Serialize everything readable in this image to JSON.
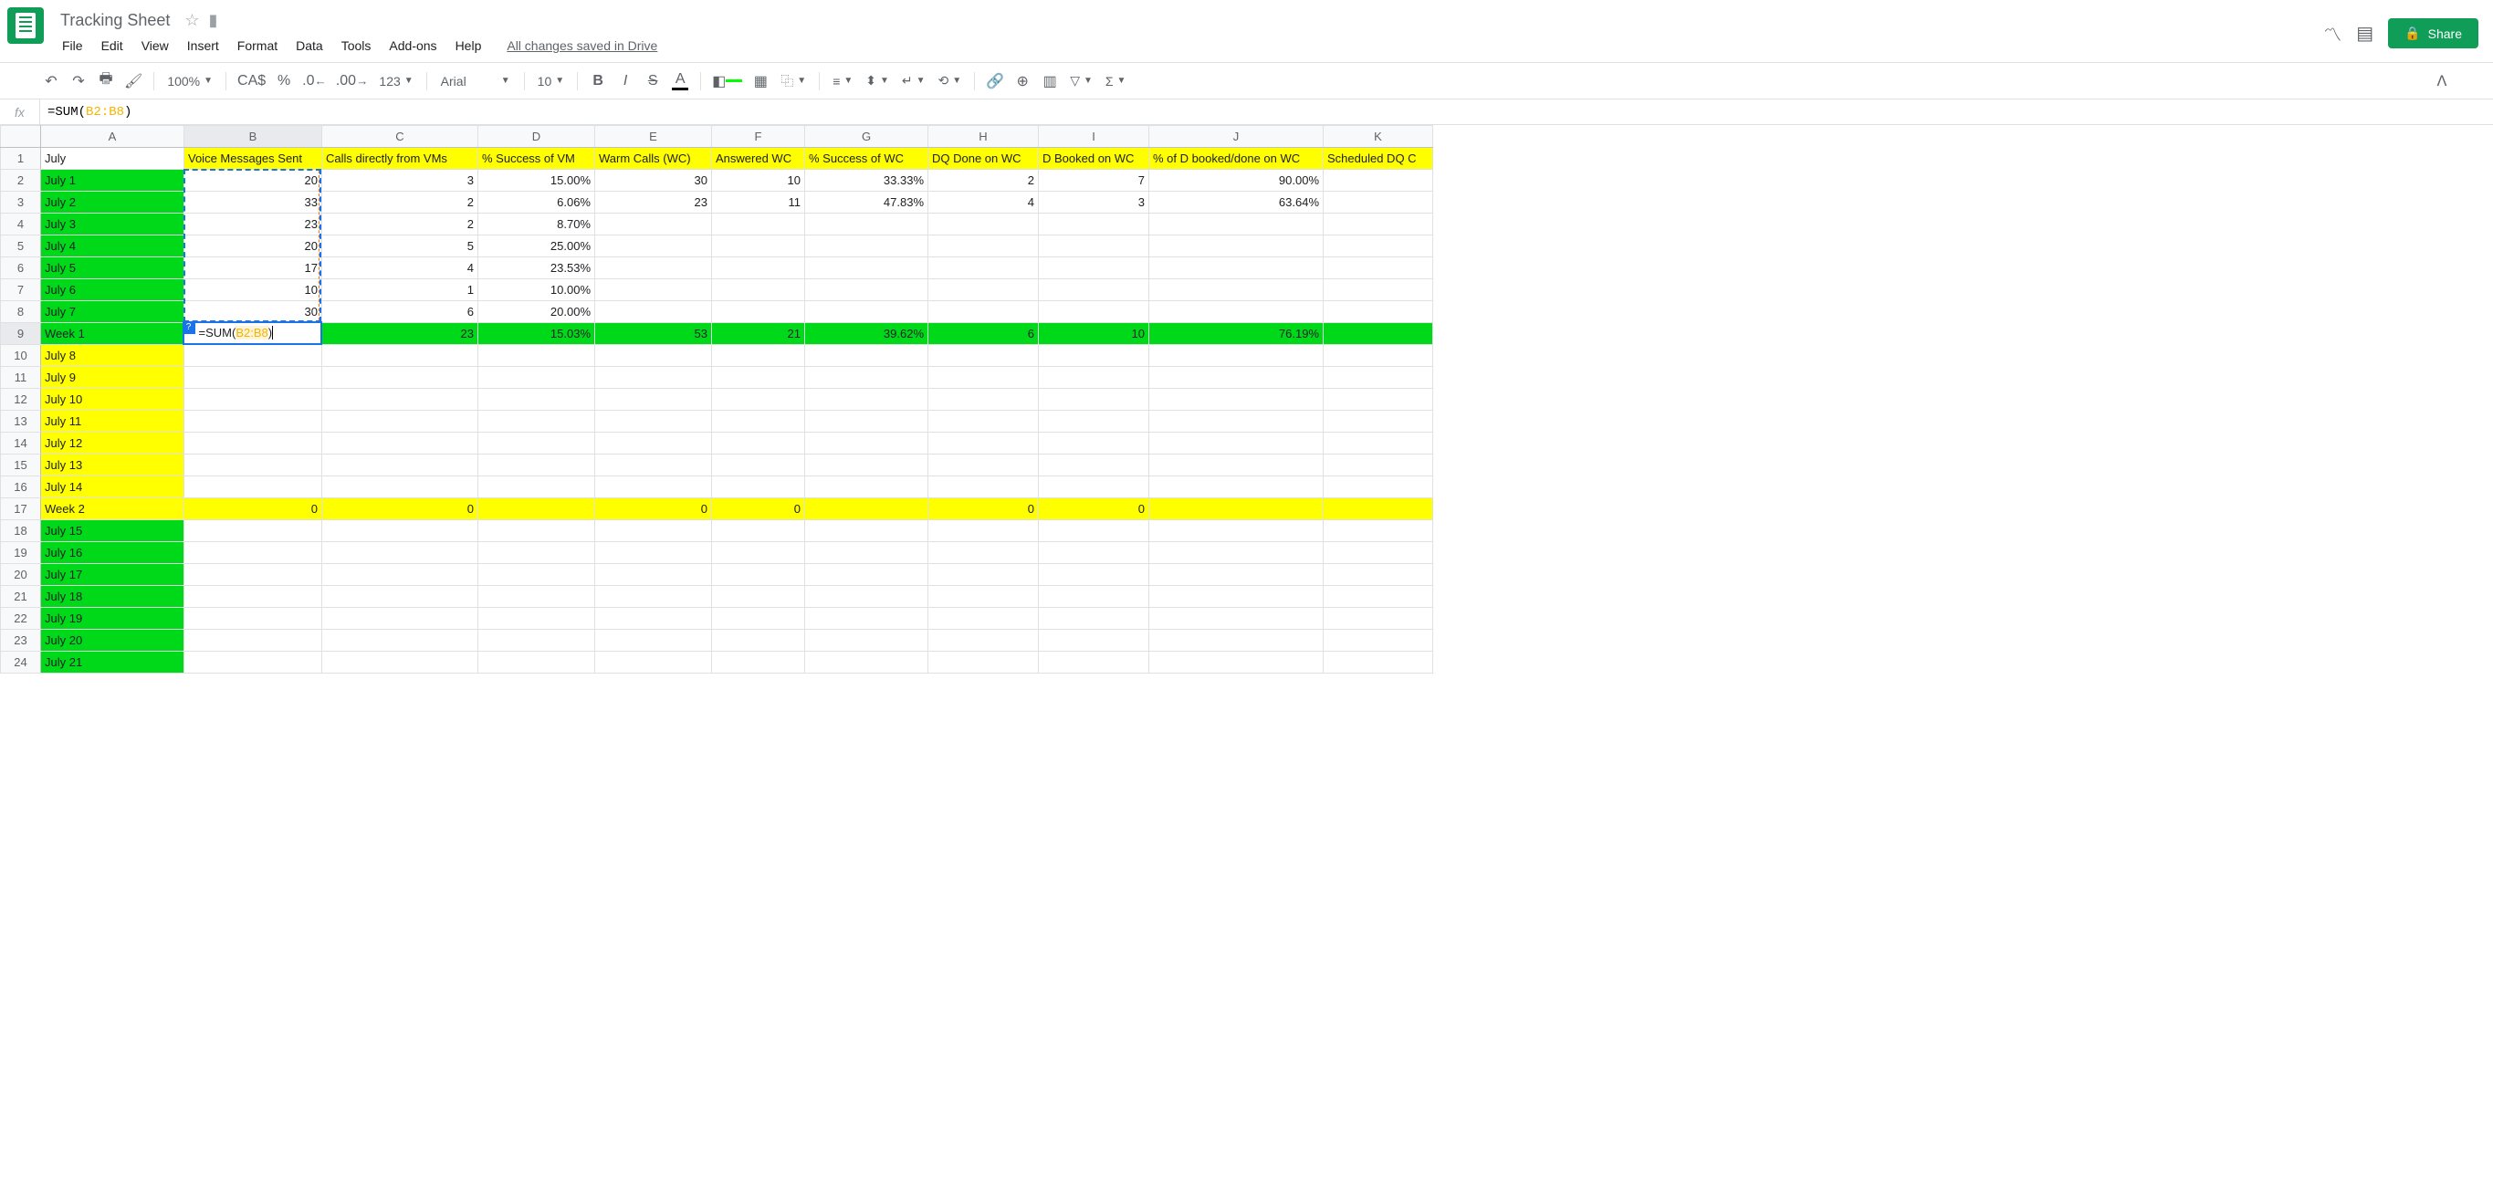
{
  "doc": {
    "title": "Tracking Sheet",
    "save_status": "All changes saved in Drive"
  },
  "share_btn": "Share",
  "menu": {
    "file": "File",
    "edit": "Edit",
    "view": "View",
    "insert": "Insert",
    "format": "Format",
    "data": "Data",
    "tools": "Tools",
    "addons": "Add-ons",
    "help": "Help"
  },
  "toolbar": {
    "zoom": "100%",
    "currency": "CA$",
    "percent": "%",
    "dec_less": ".0",
    "dec_more": ".00",
    "num_fmt": "123",
    "font": "Arial",
    "font_size": "10"
  },
  "formula_bar": {
    "fx": "fx",
    "prefix": "=SUM(",
    "range": "B2:B8",
    "suffix": ")"
  },
  "columns": [
    "A",
    "B",
    "C",
    "D",
    "E",
    "F",
    "G",
    "H",
    "I",
    "J",
    "K"
  ],
  "col_widths": {
    "A": 157,
    "B": 151,
    "C": 171,
    "D": 128,
    "E": 128,
    "F": 102,
    "G": 135,
    "H": 121,
    "I": 121,
    "J": 191,
    "K": 120
  },
  "row_count": 24,
  "selected_col": "B",
  "selected_row": 9,
  "headers_row1": {
    "A": "July",
    "B": "Voice Messages Sent",
    "C": "Calls directly from VMs",
    "D": "% Success of VM",
    "E": "Warm Calls (WC)",
    "F": "Answered WC",
    "G": "% Success of WC",
    "H": "DQ Done on WC",
    "I": "D Booked on WC",
    "J": "% of D booked/done on WC",
    "K": "Scheduled DQ C"
  },
  "rows": [
    {
      "r": 1,
      "bg": {
        "A": "",
        "B": "yellow",
        "C": "yellow",
        "D": "yellow",
        "E": "yellow",
        "F": "yellow",
        "G": "yellow",
        "H": "yellow",
        "I": "yellow",
        "J": "yellow",
        "K": "yellow"
      }
    },
    {
      "r": 2,
      "bg": {
        "A": "green"
      },
      "A": "July 1",
      "B": "20",
      "C": "3",
      "D": "15.00%",
      "E": "30",
      "F": "10",
      "G": "33.33%",
      "H": "2",
      "I": "7",
      "J": "90.00%"
    },
    {
      "r": 3,
      "bg": {
        "A": "green"
      },
      "A": "July 2",
      "B": "33",
      "C": "2",
      "D": "6.06%",
      "E": "23",
      "F": "11",
      "G": "47.83%",
      "H": "4",
      "I": "3",
      "J": "63.64%"
    },
    {
      "r": 4,
      "bg": {
        "A": "green"
      },
      "A": "July 3",
      "B": "23",
      "C": "2",
      "D": "8.70%"
    },
    {
      "r": 5,
      "bg": {
        "A": "green"
      },
      "A": "July 4",
      "B": "20",
      "C": "5",
      "D": "25.00%"
    },
    {
      "r": 6,
      "bg": {
        "A": "green"
      },
      "A": "July 5",
      "B": "17",
      "C": "4",
      "D": "23.53%"
    },
    {
      "r": 7,
      "bg": {
        "A": "green"
      },
      "A": "July 6",
      "B": "10",
      "C": "1",
      "D": "10.00%"
    },
    {
      "r": 8,
      "bg": {
        "A": "green"
      },
      "A": "July 7",
      "B": "30",
      "C": "6",
      "D": "20.00%"
    },
    {
      "r": 9,
      "bg": {
        "A": "green",
        "B": "",
        "C": "green",
        "D": "green",
        "E": "green",
        "F": "green",
        "G": "green",
        "H": "green",
        "I": "green",
        "J": "green",
        "K": "green"
      },
      "A": "Week 1",
      "C": "23",
      "D": "15.03%",
      "E": "53",
      "F": "21",
      "G": "39.62%",
      "H": "6",
      "I": "10",
      "J": "76.19%"
    },
    {
      "r": 10,
      "bg": {
        "A": "yellow"
      },
      "A": "July 8"
    },
    {
      "r": 11,
      "bg": {
        "A": "yellow"
      },
      "A": "July 9"
    },
    {
      "r": 12,
      "bg": {
        "A": "yellow"
      },
      "A": "July 10"
    },
    {
      "r": 13,
      "bg": {
        "A": "yellow"
      },
      "A": "July 11"
    },
    {
      "r": 14,
      "bg": {
        "A": "yellow"
      },
      "A": "July 12"
    },
    {
      "r": 15,
      "bg": {
        "A": "yellow"
      },
      "A": "July 13"
    },
    {
      "r": 16,
      "bg": {
        "A": "yellow"
      },
      "A": "July 14"
    },
    {
      "r": 17,
      "bg": {
        "A": "yellow",
        "B": "yellow",
        "C": "yellow",
        "D": "yellow",
        "E": "yellow",
        "F": "yellow",
        "G": "yellow",
        "H": "yellow",
        "I": "yellow",
        "J": "yellow",
        "K": "yellow"
      },
      "A": "Week 2",
      "B": "0",
      "C": "0",
      "E": "0",
      "F": "0",
      "H": "0",
      "I": "0"
    },
    {
      "r": 18,
      "bg": {
        "A": "green"
      },
      "A": "July 15"
    },
    {
      "r": 19,
      "bg": {
        "A": "green"
      },
      "A": "July 16"
    },
    {
      "r": 20,
      "bg": {
        "A": "green"
      },
      "A": "July 17"
    },
    {
      "r": 21,
      "bg": {
        "A": "green"
      },
      "A": "July 18"
    },
    {
      "r": 22,
      "bg": {
        "A": "green"
      },
      "A": "July 19"
    },
    {
      "r": 23,
      "bg": {
        "A": "green"
      },
      "A": "July 20"
    },
    {
      "r": 24,
      "bg": {
        "A": "green"
      },
      "A": "July 21"
    }
  ],
  "active_cell": {
    "row": 9,
    "col": "B",
    "formula_prefix": "=SUM(",
    "formula_range": "B2:B8",
    "formula_suffix": ")"
  },
  "dashed_range": {
    "top_row": 2,
    "bottom_row": 8,
    "col": "B"
  },
  "colors": {
    "yellow": "#ffff00",
    "green": "#00d91a",
    "grid": "#e0e0e0",
    "header_bg": "#f8f9fa",
    "blue": "#1a73e8",
    "orange": "#ff6d01"
  }
}
